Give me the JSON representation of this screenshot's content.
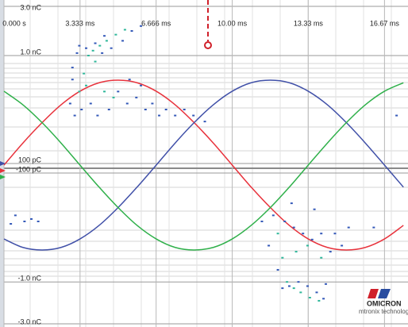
{
  "chart_data": {
    "type": "scatter",
    "xlim": [
      0,
      17.7
    ],
    "xticks": [
      {
        "value": 0,
        "label": "0.000 s"
      },
      {
        "value": 3.333,
        "label": "3.333 ms"
      },
      {
        "value": 6.666,
        "label": "6.666 ms"
      },
      {
        "value": 10,
        "label": "10.00 ms"
      },
      {
        "value": 13.33,
        "label": "13.33 ms"
      },
      {
        "value": 16.67,
        "label": "16.67 ms"
      }
    ],
    "ylim": [
      -3,
      3
    ],
    "yticks": [
      {
        "value": 3,
        "label": "3.0 nC"
      },
      {
        "value": 1,
        "label": "1.0 nC"
      },
      {
        "value": 0.1,
        "label": "100 pC"
      },
      {
        "value": -0.1,
        "label": "-100 pC"
      },
      {
        "value": -1,
        "label": "-1.0 nC"
      },
      {
        "value": -3,
        "label": "-3.0 nC"
      }
    ],
    "y2lim": [
      -1.87,
      1.87
    ],
    "grid": true,
    "x": [
      0,
      0.83,
      1.67,
      2.5,
      3.33,
      4.17,
      5,
      5.83,
      6.67,
      7.5,
      8.33,
      9.17,
      10,
      10.83,
      11.67,
      12.5,
      13.33,
      14.17,
      15,
      15.83,
      16.67,
      17.5
    ],
    "series": [
      {
        "type": "line",
        "axis": "y2",
        "color": "#e8323c",
        "values": [
          0,
          0.26,
          0.5,
          0.71,
          0.87,
          0.97,
          1,
          0.97,
          0.87,
          0.71,
          0.5,
          0.26,
          0,
          -0.26,
          -0.5,
          -0.71,
          -0.87,
          -0.97,
          -1,
          -0.97,
          -0.87,
          -0.71
        ]
      },
      {
        "type": "line",
        "axis": "y2",
        "color": "#4050a8",
        "values": [
          -0.87,
          -0.97,
          -1,
          -0.97,
          -0.87,
          -0.71,
          -0.5,
          -0.26,
          0,
          0.26,
          0.5,
          0.71,
          0.87,
          0.97,
          1,
          0.97,
          0.87,
          0.71,
          0.5,
          0.26,
          0,
          -0.26
        ]
      },
      {
        "type": "line",
        "axis": "y2",
        "color": "#2fb04a",
        "values": [
          0.87,
          0.71,
          0.5,
          0.26,
          0,
          -0.26,
          -0.5,
          -0.71,
          -0.87,
          -0.97,
          -1,
          -0.97,
          -0.87,
          -0.71,
          -0.5,
          -0.26,
          0,
          0.26,
          0.5,
          0.71,
          0.87,
          0.97
        ]
      },
      {
        "type": "scatter",
        "color": "#3358b8",
        "x": [
          2.9,
          3.0,
          3.1,
          3.2,
          3.4,
          3.6,
          3.8,
          4.0,
          4.1,
          4.3,
          4.6,
          4.7,
          5.0,
          5.2,
          5.4,
          5.6,
          5.8,
          6.0,
          6.2,
          6.5,
          6.8,
          7.1,
          7.5,
          7.9,
          8.3,
          5.5,
          6.0,
          4.4,
          3.3,
          3.0,
          11.3,
          11.6,
          11.8,
          12.0,
          12.3,
          12.5,
          12.7,
          12.9,
          13.1,
          13.3,
          13.5,
          13.7,
          13.9,
          14.1,
          14.3,
          14.5,
          14.8,
          15.1,
          12.6,
          13.6,
          14.0,
          12.2,
          0.5,
          0.9,
          1.2,
          0.3,
          1.5,
          16.2,
          17.2,
          8.8
        ],
        "values": [
          0.6,
          0.9,
          0.5,
          1.1,
          0.55,
          1.3,
          0.6,
          1.5,
          0.5,
          1.1,
          0.55,
          1.3,
          0.7,
          1.6,
          0.6,
          2.0,
          0.65,
          2.2,
          0.55,
          0.6,
          0.5,
          0.55,
          0.5,
          0.55,
          0.5,
          0.8,
          0.75,
          1.8,
          1.4,
          0.8,
          -0.5,
          -0.7,
          -0.45,
          -0.9,
          -0.5,
          -1.2,
          -0.55,
          -1.0,
          -0.6,
          -1.2,
          -0.65,
          -1.5,
          -0.6,
          -1.1,
          -0.75,
          -0.6,
          -0.7,
          -0.55,
          -0.35,
          -0.4,
          -1.8,
          -1.3,
          -0.45,
          -0.5,
          -0.48,
          -0.52,
          -0.5,
          -0.55,
          0.5,
          0.45
        ]
      },
      {
        "type": "scatter",
        "color": "#2fb79a",
        "x": [
          3.3,
          3.5,
          3.7,
          3.9,
          4.2,
          4.5,
          4.9,
          5.3,
          3.6,
          4.0,
          4.4,
          4.8,
          12.0,
          12.2,
          12.4,
          12.7,
          13.0,
          13.4,
          13.8,
          12.8,
          13.3,
          13.9
        ],
        "values": [
          0.7,
          0.85,
          1.0,
          1.2,
          1.4,
          1.6,
          1.85,
          2.05,
          0.75,
          0.95,
          0.7,
          0.65,
          -0.6,
          -0.8,
          -1.0,
          -1.3,
          -1.5,
          -1.75,
          -1.9,
          -0.75,
          -0.7,
          -0.8
        ]
      }
    ]
  },
  "branding": {
    "name": "OMICRON",
    "tagline": "mtronix technology"
  }
}
